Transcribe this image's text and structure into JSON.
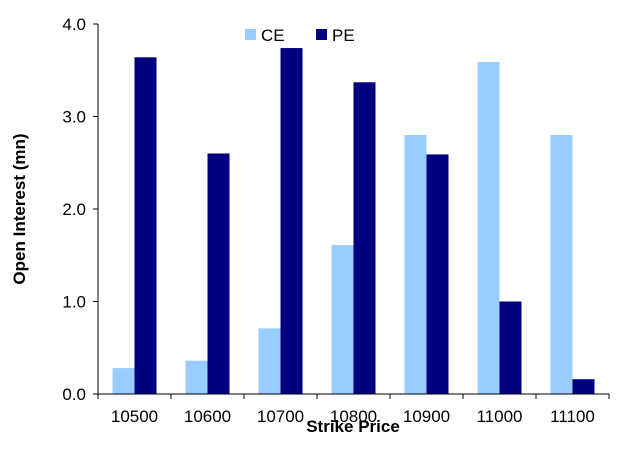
{
  "chart_data": {
    "type": "bar",
    "title": "",
    "xlabel": "Strike Price",
    "ylabel": "Open Interest (mn)",
    "categories": [
      "10500",
      "10600",
      "10700",
      "10800",
      "10900",
      "11000",
      "11100"
    ],
    "series": [
      {
        "name": "CE",
        "color": "#99ccff",
        "values": [
          0.28,
          0.36,
          0.71,
          1.61,
          2.8,
          3.59,
          2.8
        ]
      },
      {
        "name": "PE",
        "color": "#000080",
        "values": [
          3.64,
          2.6,
          3.74,
          3.37,
          2.59,
          1.0,
          0.16
        ]
      }
    ],
    "ylim": [
      0,
      4
    ],
    "yticks": [
      "0.0",
      "1.0",
      "2.0",
      "3.0",
      "4.0"
    ],
    "legend_position": "top-center",
    "grid": false
  }
}
